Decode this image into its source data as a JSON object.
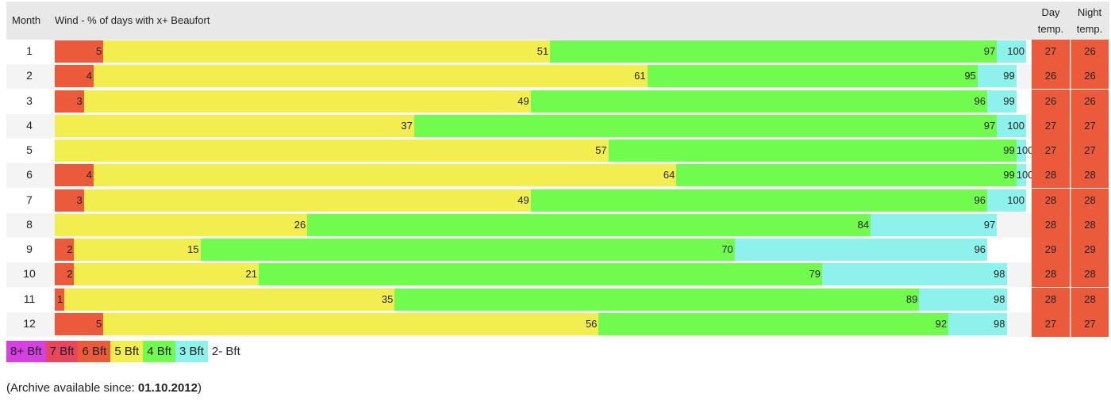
{
  "header": {
    "month": "Month",
    "wind": "Wind - % of days with x+ Beaufort",
    "day_temp_1": "Day",
    "day_temp_2": "temp.",
    "night_temp_1": "Night",
    "night_temp_2": "temp."
  },
  "colors": {
    "bft8": "#d63fe0",
    "bft7": "#e8465f",
    "bft6": "#ec5a3c",
    "bft5": "#f3ee50",
    "bft4": "#72fb4f",
    "bft3": "#8ef2ec",
    "bft2": "#ffffff"
  },
  "chart_data": {
    "type": "bar",
    "title": "Wind - % of days with x+ Beaufort",
    "categories": [
      "1",
      "2",
      "3",
      "4",
      "5",
      "6",
      "7",
      "8",
      "9",
      "10",
      "11",
      "12"
    ],
    "series": [
      {
        "name": "6 Bft",
        "values": [
          5,
          4,
          3,
          null,
          null,
          4,
          3,
          null,
          2,
          2,
          1,
          5
        ]
      },
      {
        "name": "5 Bft",
        "values": [
          51,
          61,
          49,
          37,
          57,
          64,
          49,
          26,
          15,
          21,
          35,
          56
        ]
      },
      {
        "name": "4 Bft",
        "values": [
          97,
          95,
          96,
          97,
          99,
          99,
          96,
          84,
          70,
          79,
          89,
          92
        ]
      },
      {
        "name": "3 Bft",
        "values": [
          100,
          99,
          99,
          100,
          100,
          100,
          100,
          97,
          96,
          98,
          98,
          98
        ]
      }
    ],
    "day_temp": [
      27,
      26,
      26,
      27,
      27,
      28,
      28,
      28,
      29,
      28,
      28,
      27
    ],
    "night_temp": [
      26,
      26,
      26,
      27,
      27,
      28,
      28,
      28,
      29,
      28,
      28,
      27
    ],
    "xlim": [
      0,
      100
    ]
  },
  "legend": [
    {
      "label": "8+ Bft",
      "color": "#d63fe0"
    },
    {
      "label": "7 Bft",
      "color": "#e8465f"
    },
    {
      "label": "6 Bft",
      "color": "#ec5a3c"
    },
    {
      "label": "5 Bft",
      "color": "#f3ee50"
    },
    {
      "label": "4 Bft",
      "color": "#72fb4f"
    },
    {
      "label": "3 Bft",
      "color": "#8ef2ec"
    },
    {
      "label": "2- Bft",
      "color": "#ffffff"
    }
  ],
  "archive": {
    "prefix": "(Archive available since: ",
    "date": "01.10.2012",
    "suffix": ")"
  }
}
